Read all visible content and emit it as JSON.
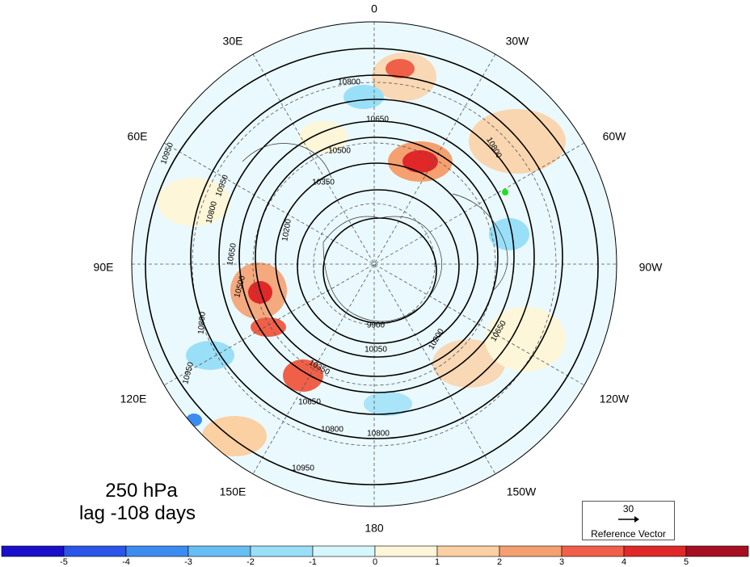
{
  "map": {
    "projection": "north-polar-stereographic",
    "longitude_labels": [
      {
        "id": "lon-0",
        "text": "0"
      },
      {
        "id": "lon-30w",
        "text": "30W"
      },
      {
        "id": "lon-60w",
        "text": "60W"
      },
      {
        "id": "lon-90w",
        "text": "90W"
      },
      {
        "id": "lon-120w",
        "text": "120W"
      },
      {
        "id": "lon-150w",
        "text": "150W"
      },
      {
        "id": "lon-180",
        "text": "180"
      },
      {
        "id": "lon-150e",
        "text": "150E"
      },
      {
        "id": "lon-120e",
        "text": "120E"
      },
      {
        "id": "lon-90e",
        "text": "90E"
      },
      {
        "id": "lon-60e",
        "text": "60E"
      },
      {
        "id": "lon-30e",
        "text": "30E"
      }
    ],
    "contour_labels": [
      "10800",
      "10650",
      "10500",
      "10350",
      "10950",
      "10950",
      "10800",
      "10650",
      "10500",
      "10200",
      "10800",
      "9900",
      "10050",
      "10200",
      "10350",
      "10650",
      "10800",
      "10950",
      "10650",
      "10800",
      "10800",
      "10950"
    ],
    "marker_color": "#22dd22"
  },
  "titles": {
    "level": "250 hPa",
    "lag": "lag -108 days"
  },
  "reference_vector": {
    "value": "30",
    "label": "Reference Vector"
  },
  "colorbar": {
    "tick_labels": [
      "-5",
      "-4",
      "-3",
      "-2",
      "-1",
      "0",
      "1",
      "2",
      "3",
      "4",
      "5"
    ],
    "colors": [
      "#1a0fc8",
      "#2a55e8",
      "#3c8cf0",
      "#66bef5",
      "#9adff8",
      "#d6f6fd",
      "#fdf6d8",
      "#fbd0a2",
      "#f5a070",
      "#f06048",
      "#e02828",
      "#a60f22"
    ]
  }
}
